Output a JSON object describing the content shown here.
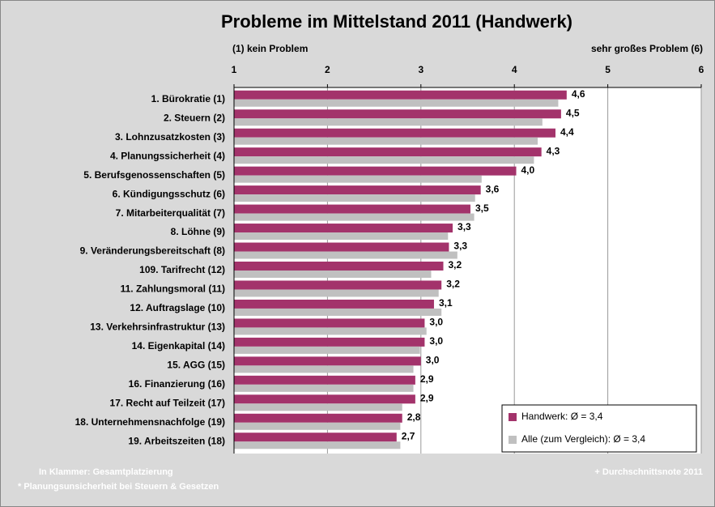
{
  "chart_data": {
    "type": "hbar",
    "title": "Probleme im Mittelstand 2011 (Handwerk)",
    "axis_label_left": "(1) kein Problem",
    "axis_label_right": "sehr großes Problem (6)",
    "categories": [
      "1. Bürokratie (1)",
      "2. Steuern (2)",
      "3. Lohnzusatzkosten (3)",
      "4. Planungssicherheit (4)",
      "5. Berufsgenossenschaften (5)",
      "6. Kündigungsschutz (6)",
      "7. Mitarbeiterqualität (7)",
      "8. Löhne (9)",
      "9. Veränderungsbereitschaft (8)",
      "109. Tarifrecht (12)",
      "11. Zahlungsmoral (11)",
      "12. Auftragslage (10)",
      "13. Verkehrsinfrastruktur (13)",
      "14. Eigenkapital (14)",
      "15. AGG (15)",
      "16. Finanzierung (16)",
      "17. Recht auf Teilzeit (17)",
      "18. Unternehmensnachfolge (19)",
      "19. Arbeitszeiten (18)"
    ],
    "series": [
      {
        "name": "Handwerk: Ø = 3,4",
        "color": "#a3336b",
        "values": [
          4.56,
          4.5,
          4.44,
          4.29,
          4.02,
          3.64,
          3.53,
          3.34,
          3.3,
          3.24,
          3.22,
          3.14,
          3.04,
          3.04,
          3.0,
          2.94,
          2.94,
          2.8,
          2.74
        ],
        "value_labels": [
          "4,6",
          "4,5",
          "4,4",
          "4,3",
          "4,0",
          "3,6",
          "3,5",
          "3,3",
          "3,3",
          "3,2",
          "3,2",
          "3,1",
          "3,0",
          "3,0",
          "3,0",
          "2,9",
          "2,9",
          "2,8",
          "2,7"
        ]
      },
      {
        "name": "Alle (zum Vergleich): Ø = 3,4",
        "color": "#c0c0c0",
        "values": [
          4.47,
          4.3,
          4.25,
          4.21,
          3.65,
          3.58,
          3.57,
          3.29,
          3.39,
          3.11,
          3.19,
          3.22,
          3.06,
          2.99,
          2.92,
          2.92,
          2.8,
          2.78,
          2.78
        ]
      }
    ],
    "xlim": [
      1,
      6
    ],
    "xticks": [
      1,
      2,
      3,
      4,
      5,
      6
    ],
    "grid": true,
    "legend": "lower right",
    "notes": [
      "In Klammer: Gesamtplatzierung",
      "* Planungsunsicherheit bei Steuern & Gesetzen"
    ],
    "note_right": "+ Durchschnittsnote 2011"
  }
}
